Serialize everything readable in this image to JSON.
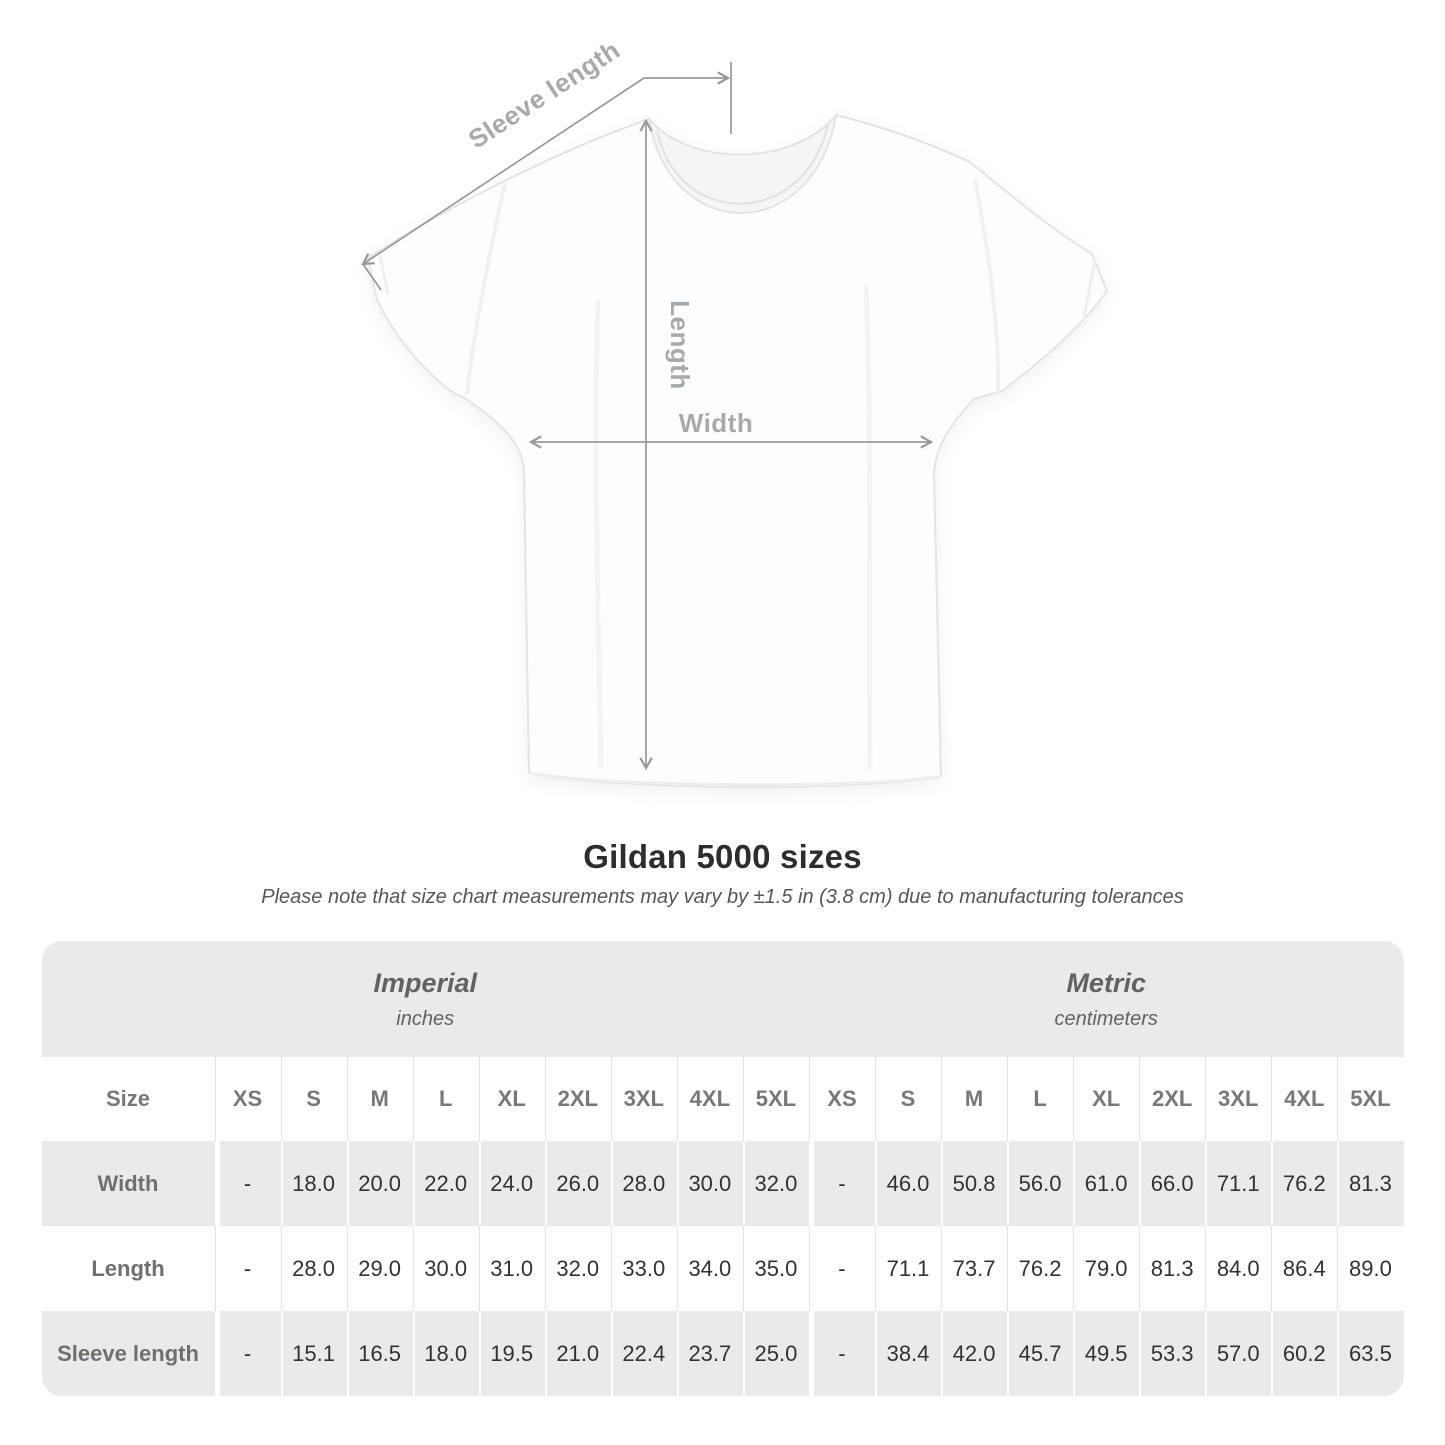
{
  "diagram": {
    "sleeve_label": "Sleeve length",
    "length_label": "Length",
    "width_label": "Width"
  },
  "title": "Gildan 5000 sizes",
  "subtitle": "Please note that size chart measurements may vary by ±1.5 in (3.8 cm) due to manufacturing tolerances",
  "colors": {
    "dimension_line": "#96999c",
    "dimension_label": "#a6aaad",
    "table_band": "#eaeaea",
    "header_text": "#5f6366",
    "value_text": "#303336"
  },
  "chart_data": {
    "type": "table",
    "title": "Gildan 5000 sizes",
    "note": "Please note that size chart measurements may vary by ±1.5 in (3.8 cm) due to manufacturing tolerances",
    "size_column_header": "Size",
    "sizes": [
      "XS",
      "S",
      "M",
      "L",
      "XL",
      "2XL",
      "3XL",
      "4XL",
      "5XL"
    ],
    "sections": [
      {
        "name": "Imperial",
        "unit": "inches"
      },
      {
        "name": "Metric",
        "unit": "centimeters"
      }
    ],
    "rows": [
      {
        "label": "Width",
        "imperial": [
          "-",
          "18.0",
          "20.0",
          "22.0",
          "24.0",
          "26.0",
          "28.0",
          "30.0",
          "32.0"
        ],
        "metric": [
          "-",
          "46.0",
          "50.8",
          "56.0",
          "61.0",
          "66.0",
          "71.1",
          "76.2",
          "81.3"
        ]
      },
      {
        "label": "Length",
        "imperial": [
          "-",
          "28.0",
          "29.0",
          "30.0",
          "31.0",
          "32.0",
          "33.0",
          "34.0",
          "35.0"
        ],
        "metric": [
          "-",
          "71.1",
          "73.7",
          "76.2",
          "79.0",
          "81.3",
          "84.0",
          "86.4",
          "89.0"
        ]
      },
      {
        "label": "Sleeve length",
        "imperial": [
          "-",
          "15.1",
          "16.5",
          "18.0",
          "19.5",
          "21.0",
          "22.4",
          "23.7",
          "25.0"
        ],
        "metric": [
          "-",
          "38.4",
          "42.0",
          "45.7",
          "49.5",
          "53.3",
          "57.0",
          "60.2",
          "63.5"
        ]
      }
    ]
  }
}
